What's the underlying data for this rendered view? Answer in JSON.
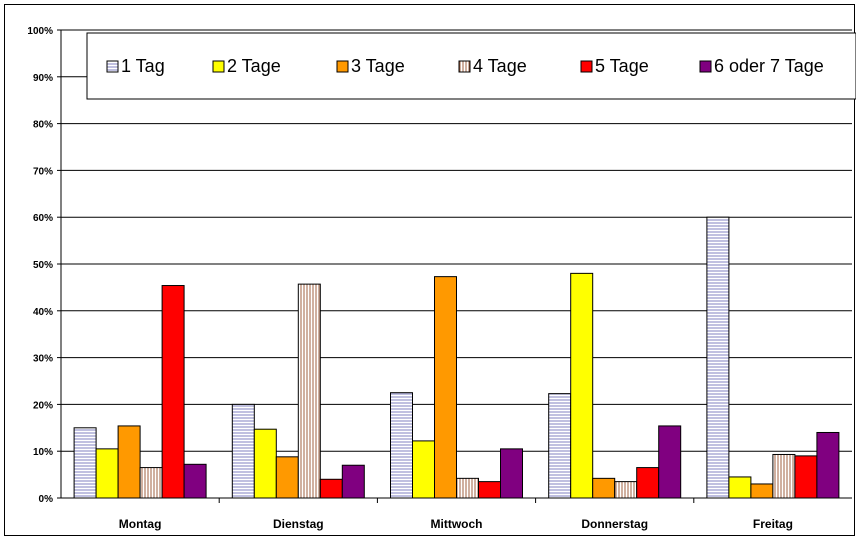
{
  "chart_data": {
    "type": "bar",
    "categories": [
      "Montag",
      "Dienstag",
      "Mittwoch",
      "Donnerstag",
      "Freitag"
    ],
    "series": [
      {
        "name": "1 Tag",
        "color": "#ffffff",
        "pattern": "horizontal-lines",
        "values": [
          15,
          20,
          22.5,
          22.3,
          60
        ]
      },
      {
        "name": "2 Tage",
        "color": "#ffff00",
        "pattern": "solid",
        "values": [
          10.5,
          14.7,
          12.2,
          48,
          4.5
        ]
      },
      {
        "name": "3 Tage",
        "color": "#ff9900",
        "pattern": "solid",
        "values": [
          15.4,
          8.8,
          47.3,
          4.2,
          3
        ]
      },
      {
        "name": "4 Tage",
        "color": "#ffffff",
        "pattern": "vertical-lines",
        "values": [
          6.5,
          45.7,
          4.2,
          3.5,
          9.3
        ]
      },
      {
        "name": "5 Tage",
        "color": "#ff0000",
        "pattern": "solid",
        "values": [
          45.4,
          4,
          3.5,
          6.5,
          9
        ]
      },
      {
        "name": "6 oder 7 Tage",
        "color": "#800080",
        "pattern": "solid",
        "values": [
          7.2,
          7,
          10.5,
          15.4,
          14
        ]
      }
    ],
    "yticks": [
      "0%",
      "10%",
      "20%",
      "30%",
      "40%",
      "50%",
      "60%",
      "70%",
      "80%",
      "90%",
      "100%"
    ],
    "ylim": [
      0,
      100
    ],
    "grid": true,
    "legend": "top"
  }
}
